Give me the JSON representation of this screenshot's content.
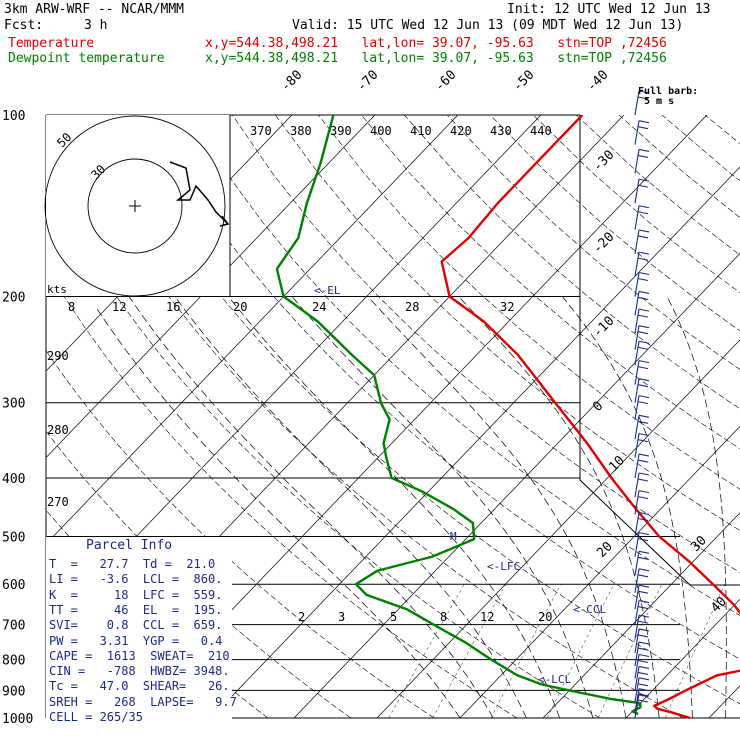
{
  "header": {
    "model": "3km ARW-WRF -- NCAR/MMM",
    "init": "Init: 12 UTC Wed 12 Jun 13",
    "fcst_label": "Fcst:",
    "fcst_value": "3 h",
    "valid": "Valid: 15 UTC Wed 12 Jun 13 (09 MDT Wed 12 Jun 13)",
    "temperature_label": "Temperature",
    "dewpoint_label": "Dewpoint temperature",
    "location": "x,y=544.38,498.21   lat,lon= 39.07, -95.63   stn=TOP ,72456"
  },
  "wind_key": {
    "line1": "Full barb:",
    "line2": "5 m s"
  },
  "parcel_info": {
    "title": "Parcel Info",
    "rows": [
      "T  =   27.7  Td =  21.0",
      "LI =   -3.6  LCL =  860.",
      "K  =     18  LFC =  559.",
      "TT =     46  EL  =  195.",
      "SVI=    0.8  CCL =  659.",
      "PW =   3.31  YGP =   0.4",
      "CAPE =  1613  SWEAT=  210",
      "CIN =   -788  HWBZ= 3948.",
      "Tc =   47.0  SHEAR=   26.",
      "SREH =   268  LAPSE=   9.7",
      "CELL = 265/35"
    ]
  },
  "level_labels": {
    "el": "<-EL",
    "lfc": "<-LFC",
    "ccl": "<-CCL",
    "lcl": "<-LCL"
  },
  "hodograph": {
    "units": "kts",
    "ring_labels": [
      "50",
      "30"
    ]
  },
  "chart_data": {
    "type": "line",
    "title": "",
    "xlabel": "",
    "ylabel": "",
    "y_axis": "pressure (hPa), log scale",
    "y_ticks": [
      100,
      200,
      300,
      400,
      500,
      600,
      700,
      800,
      900,
      1000
    ],
    "isotherm_labels": [
      "-80",
      "-70",
      "-60",
      "-50",
      "-40",
      "-30",
      "-20",
      "-10",
      "0",
      "10",
      "20",
      "30",
      "40"
    ],
    "theta_labels_top": [
      "370",
      "380",
      "390",
      "400",
      "410",
      "420",
      "430",
      "440"
    ],
    "theta_labels_left": [
      "290",
      "280",
      "270"
    ],
    "mixing_ratio_labels": [
      "2",
      "3",
      "5",
      "8",
      "12",
      "20"
    ],
    "theta_e_labels": [
      "8",
      "12",
      "16",
      "20",
      "24",
      "28",
      "32"
    ],
    "series": [
      {
        "name": "Temperature",
        "color": "#e00000",
        "points": [
          [
            1000,
            27.7
          ],
          [
            980,
            25.0
          ],
          [
            965,
            22.7
          ],
          [
            955,
            22.0
          ],
          [
            930,
            23.0
          ],
          [
            900,
            24.0
          ],
          [
            875,
            25.0
          ],
          [
            850,
            26.0
          ],
          [
            830,
            29.0
          ],
          [
            810,
            31.5
          ],
          [
            790,
            31.0
          ],
          [
            770,
            30.0
          ],
          [
            740,
            28.0
          ],
          [
            700,
            24.0
          ],
          [
            650,
            20.0
          ],
          [
            600,
            15.0
          ],
          [
            550,
            9.5
          ],
          [
            500,
            3.0
          ],
          [
            450,
            -3.0
          ],
          [
            400,
            -9.5
          ],
          [
            350,
            -16.5
          ],
          [
            300,
            -25.0
          ],
          [
            250,
            -35.0
          ],
          [
            220,
            -43.0
          ],
          [
            200,
            -50.0
          ],
          [
            175,
            -55.0
          ],
          [
            160,
            -54.5
          ],
          [
            140,
            -55.0
          ],
          [
            120,
            -55.0
          ],
          [
            100,
            -55.0
          ]
        ]
      },
      {
        "name": "Dewpoint temperature",
        "color": "#008000",
        "points": [
          [
            985,
            21.0
          ],
          [
            975,
            20.0
          ],
          [
            960,
            20.5
          ],
          [
            945,
            20.0
          ],
          [
            930,
            16.0
          ],
          [
            900,
            10.0
          ],
          [
            880,
            6.0
          ],
          [
            850,
            2.0
          ],
          [
            800,
            -3.0
          ],
          [
            750,
            -8.0
          ],
          [
            700,
            -14.0
          ],
          [
            660,
            -19.0
          ],
          [
            625,
            -25.5
          ],
          [
            600,
            -28.0
          ],
          [
            570,
            -27.0
          ],
          [
            540,
            -22.0
          ],
          [
            505,
            -19.0
          ],
          [
            475,
            -21.0
          ],
          [
            450,
            -25.0
          ],
          [
            420,
            -31.0
          ],
          [
            400,
            -36.0
          ],
          [
            370,
            -39.0
          ],
          [
            350,
            -41.0
          ],
          [
            320,
            -43.0
          ],
          [
            300,
            -46.0
          ],
          [
            270,
            -50.0
          ],
          [
            250,
            -55.0
          ],
          [
            220,
            -63.0
          ],
          [
            200,
            -70.0
          ],
          [
            180,
            -74.0
          ],
          [
            160,
            -75.0
          ],
          [
            140,
            -78.0
          ],
          [
            120,
            -81.0
          ],
          [
            100,
            -85.0
          ]
        ]
      }
    ],
    "wind_barb_pressures": [
      100,
      112,
      125,
      140,
      155,
      170,
      185,
      200,
      215,
      230,
      245,
      260,
      280,
      300,
      320,
      345,
      370,
      400,
      430,
      460,
      500,
      540,
      580,
      620,
      660,
      700,
      740,
      780,
      820,
      860,
      900,
      940,
      980,
      1000
    ]
  }
}
